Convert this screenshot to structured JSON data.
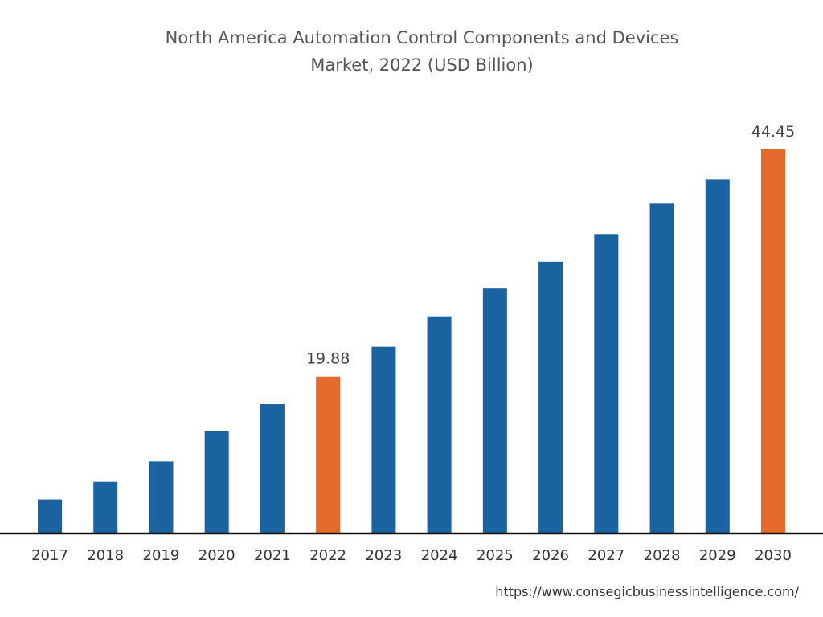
{
  "chart_data": {
    "type": "bar",
    "title_lines": [
      "North America Automation Control Components and Devices",
      "Market, 2022 (USD Billion)"
    ],
    "categories": [
      "2017",
      "2018",
      "2019",
      "2020",
      "2021",
      "2022",
      "2023",
      "2024",
      "2025",
      "2026",
      "2027",
      "2028",
      "2029",
      "2030"
    ],
    "values": [
      6.6,
      8.5,
      10.7,
      14.0,
      16.9,
      19.88,
      23.1,
      26.4,
      29.4,
      32.3,
      35.3,
      38.6,
      41.2,
      44.45
    ],
    "data_labels": {
      "2022": "19.88",
      "2030": "44.45"
    },
    "highlight": [
      "2022",
      "2030"
    ],
    "colors": {
      "default": "#1a62a0",
      "highlight": "#e5692b"
    },
    "xlabel": "",
    "ylabel": "",
    "ylim": [
      3,
      44.45
    ],
    "grid": false,
    "legend": "none"
  },
  "source": "https://www.consegicbusinessintelligence.com/"
}
